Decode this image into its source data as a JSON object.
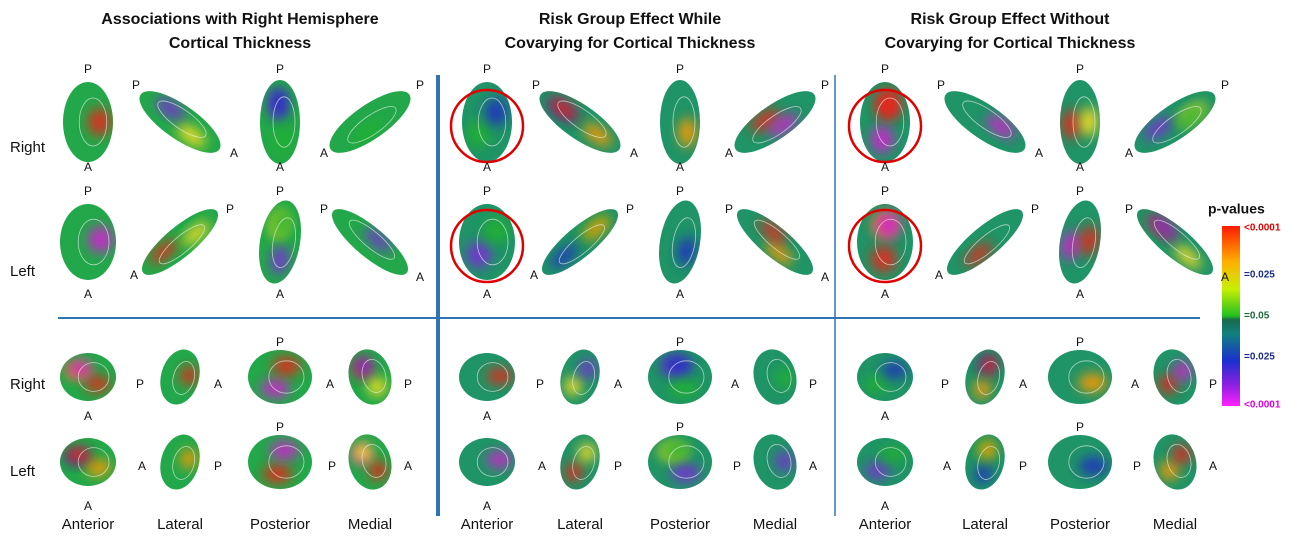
{
  "columns": [
    {
      "title": [
        "Associations with Right Hemisphere",
        "Cortical Thickness"
      ],
      "sections": [
        {
          "views": [
            [
              [
                "P",
                "A"
              ],
              [
                "P",
                "A"
              ],
              [
                "P",
                "A"
              ],
              [
                "P",
                "A"
              ]
            ],
            [
              [
                "P",
                "A"
              ],
              [
                "A",
                "P"
              ],
              [
                "P",
                "A"
              ],
              [
                "P",
                "A"
              ]
            ]
          ]
        },
        {
          "views": [
            [
              [
                "A"
              ],
              [
                "P",
                "A"
              ],
              [
                "P"
              ],
              [
                "A",
                "P"
              ]
            ],
            [
              [
                "A"
              ],
              [
                "A",
                "P"
              ],
              [
                "P"
              ],
              [
                "P",
                "A"
              ]
            ]
          ]
        }
      ],
      "view_labels": [
        "Anterior",
        "Lateral",
        "Posterior",
        "Medial"
      ]
    },
    {
      "title": [
        "Risk Group Effect While",
        "Covarying for Cortical Thickness"
      ],
      "sections": [
        {
          "views": [
            [
              [
                "P",
                "A"
              ],
              [
                "P",
                "A"
              ],
              [
                "P",
                "A"
              ],
              [
                "P",
                "A"
              ]
            ],
            [
              [
                "P",
                "A"
              ],
              [
                "A",
                "P"
              ],
              [
                "P",
                "A"
              ],
              [
                "P",
                "A"
              ]
            ]
          ]
        },
        {
          "views": [
            [
              [
                "A"
              ],
              [
                "P",
                "A"
              ],
              [
                "P"
              ],
              [
                "A",
                "P"
              ]
            ],
            [
              [
                "A"
              ],
              [
                "A",
                "P"
              ],
              [
                "P"
              ],
              [
                "P",
                "A"
              ]
            ]
          ]
        }
      ],
      "view_labels": [
        "Anterior",
        "Lateral",
        "Posterior",
        "Medial"
      ]
    },
    {
      "title": [
        "Risk Group Effect Without",
        "Covarying for Cortical Thickness"
      ],
      "sections": [
        {
          "views": [
            [
              [
                "P",
                "A"
              ],
              [
                "P",
                "A"
              ],
              [
                "P",
                "A"
              ],
              [
                "P",
                "A"
              ]
            ],
            [
              [
                "P",
                "A"
              ],
              [
                "A",
                "P"
              ],
              [
                "P",
                "A"
              ],
              [
                "P",
                "A"
              ]
            ]
          ]
        },
        {
          "views": [
            [
              [
                "A"
              ],
              [
                "P",
                "A"
              ],
              [
                "P"
              ],
              [
                "A",
                "P"
              ]
            ],
            [
              [
                "A"
              ],
              [
                "A",
                "P"
              ],
              [
                "P"
              ],
              [
                "P",
                "A"
              ]
            ]
          ]
        }
      ],
      "view_labels": [
        "Anterior",
        "Lateral",
        "Posterior",
        "Medial"
      ]
    }
  ],
  "row_labels": [
    [
      "Right",
      "Left"
    ],
    [
      "Right",
      "Left"
    ]
  ],
  "legend": {
    "title": "p-values",
    "labels": [
      "<0.0001",
      "=0.025",
      "=0.05",
      "=0.025",
      "<0.0001"
    ]
  }
}
